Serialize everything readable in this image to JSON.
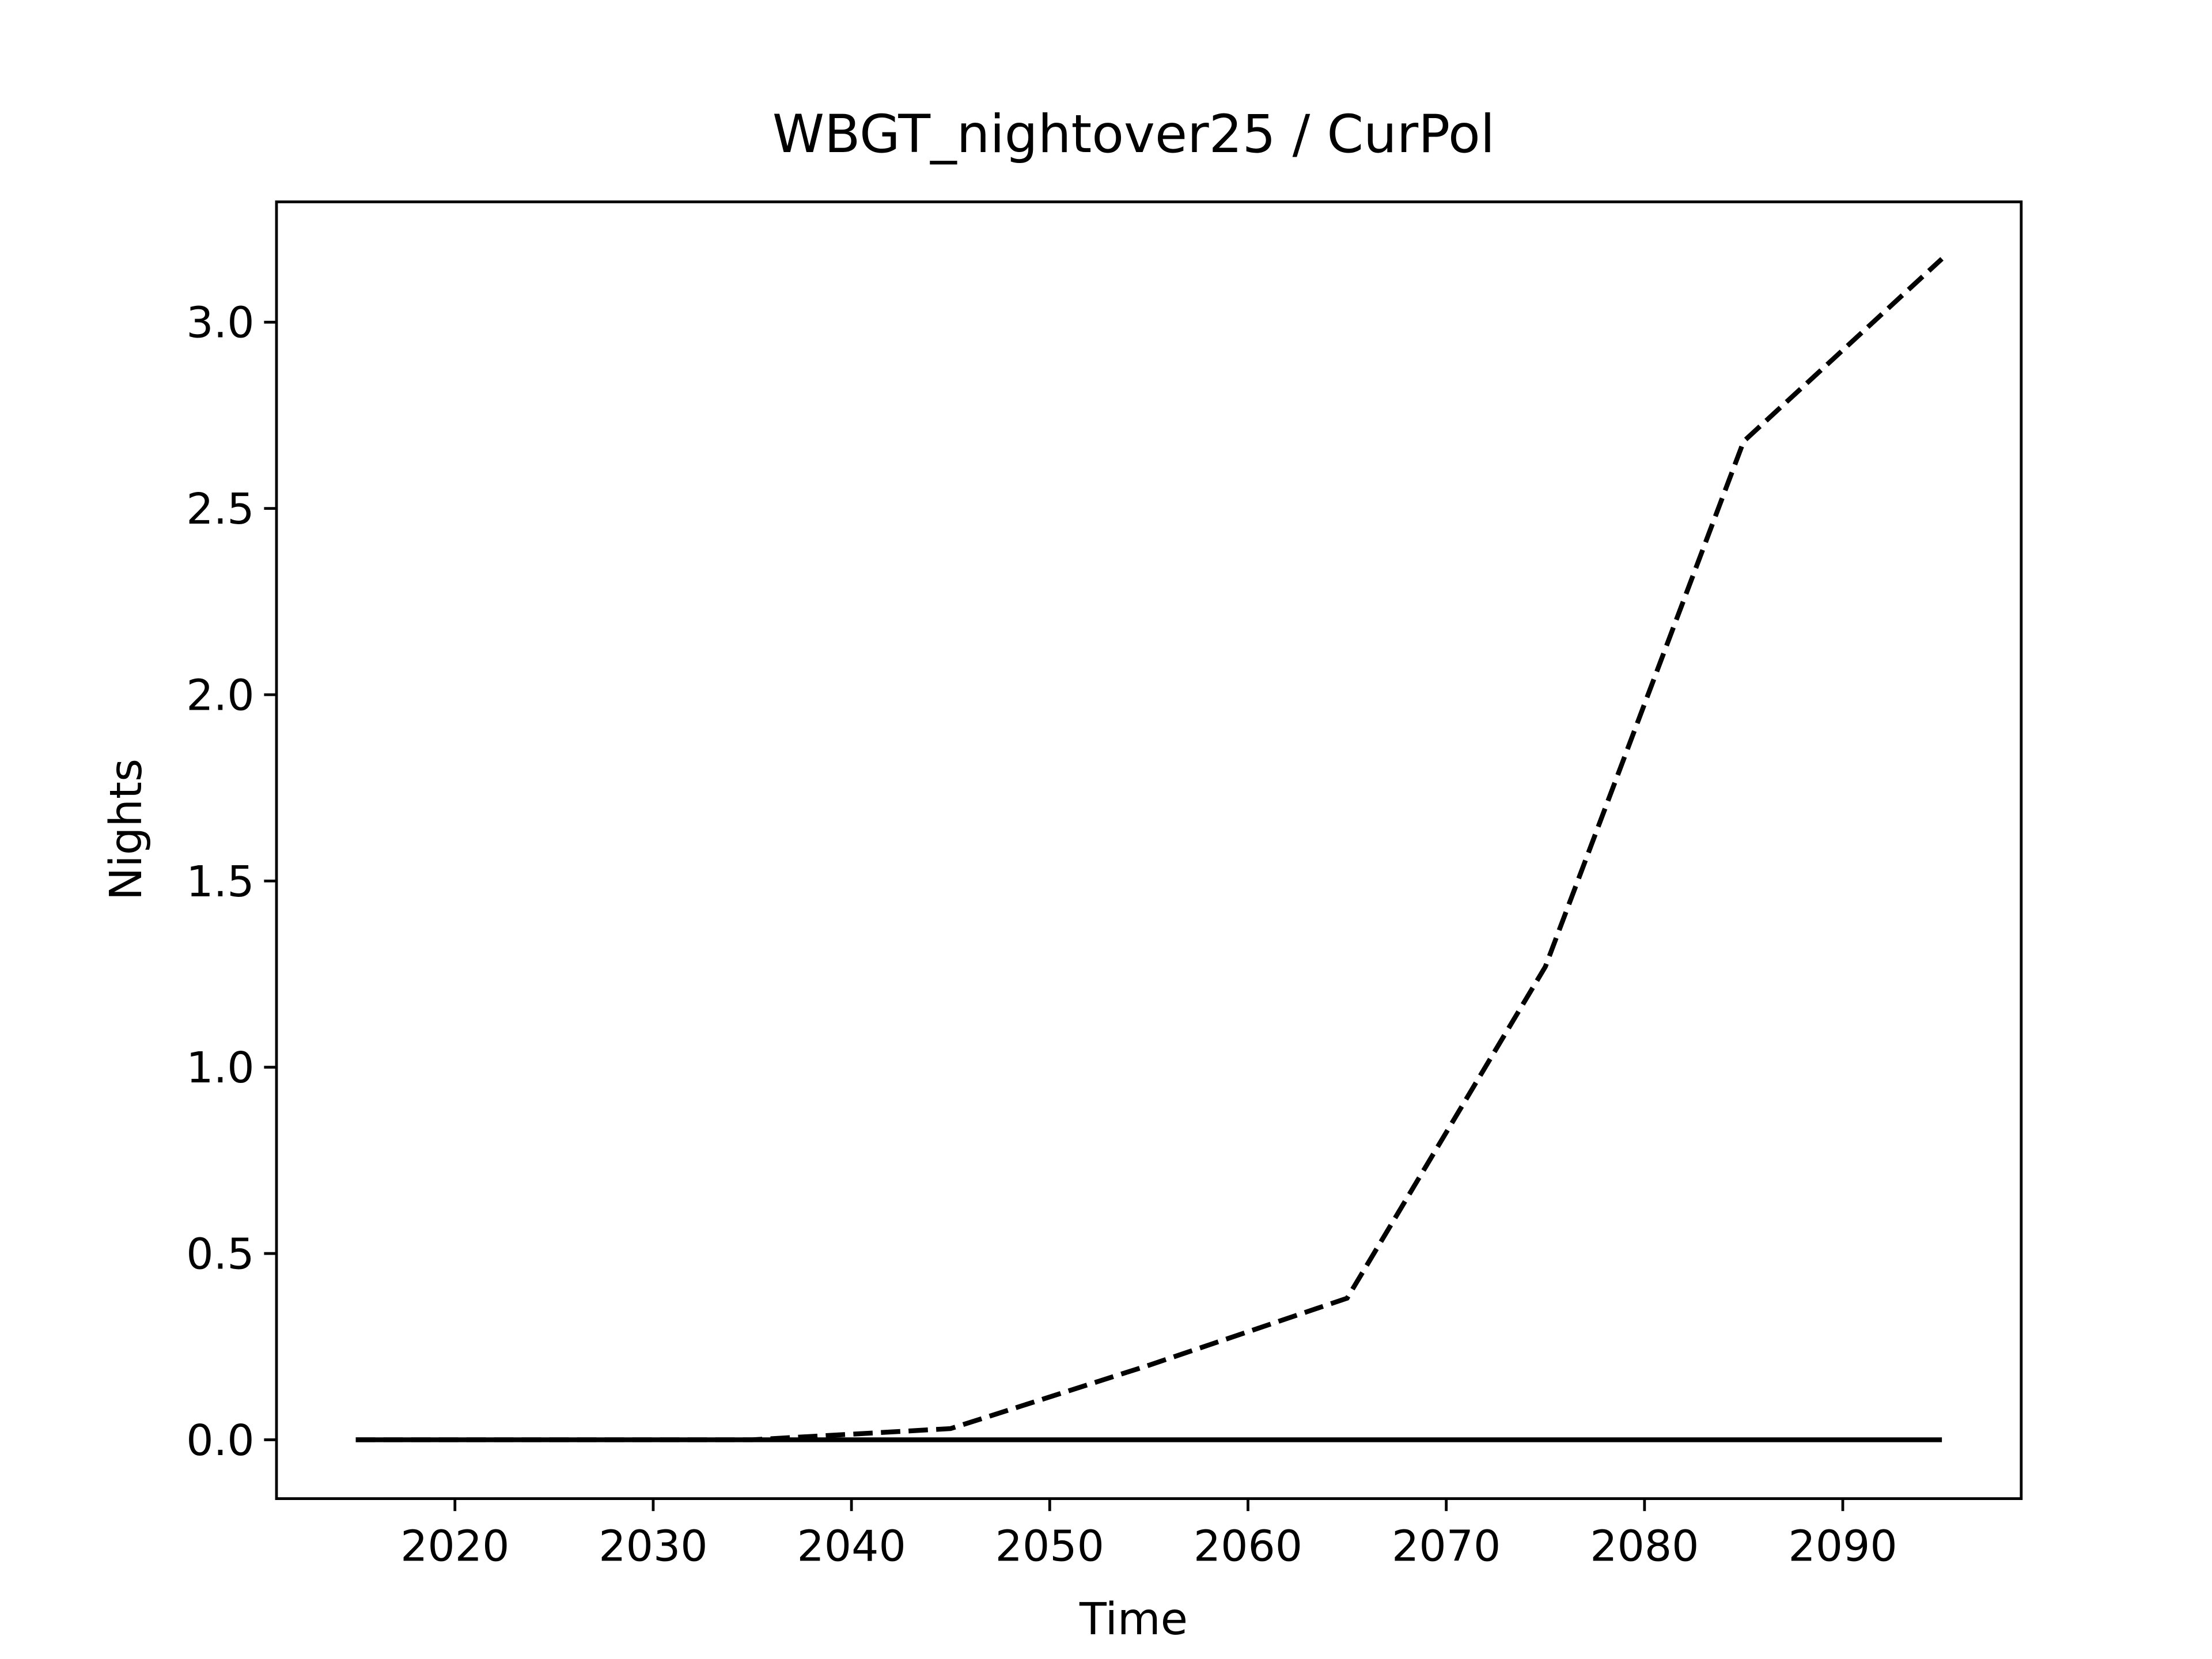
{
  "chart_data": {
    "type": "line",
    "title": "WBGT_nightover25 / CurPol",
    "x_label": "Time",
    "y_label": "Nights",
    "x": [
      2015,
      2025,
      2035,
      2045,
      2055,
      2065,
      2075,
      2085,
      2095
    ],
    "series": [
      {
        "color": "#000000",
        "style": "dashed",
        "values": [
          0,
          0,
          0,
          0.03,
          0.2,
          0.38,
          1.27,
          2.68,
          3.17
        ]
      },
      {
        "color": "#000000",
        "style": "solid",
        "values": [
          0,
          0,
          0,
          0,
          0,
          0,
          0,
          0,
          0
        ]
      }
    ],
    "xlim": [
      2011,
      2099
    ],
    "ylim": [
      -0.158,
      3.323
    ],
    "xticks": [
      2020,
      2030,
      2040,
      2050,
      2060,
      2070,
      2080,
      2090
    ],
    "yticks": [
      {
        "value": 0,
        "label": "0.0"
      },
      0.5,
      {
        "value": 1,
        "label": "1.0"
      },
      1.5,
      {
        "value": 2,
        "label": "2.0"
      },
      2.5,
      {
        "value": 3,
        "label": "3.0"
      }
    ],
    "grid": false
  }
}
